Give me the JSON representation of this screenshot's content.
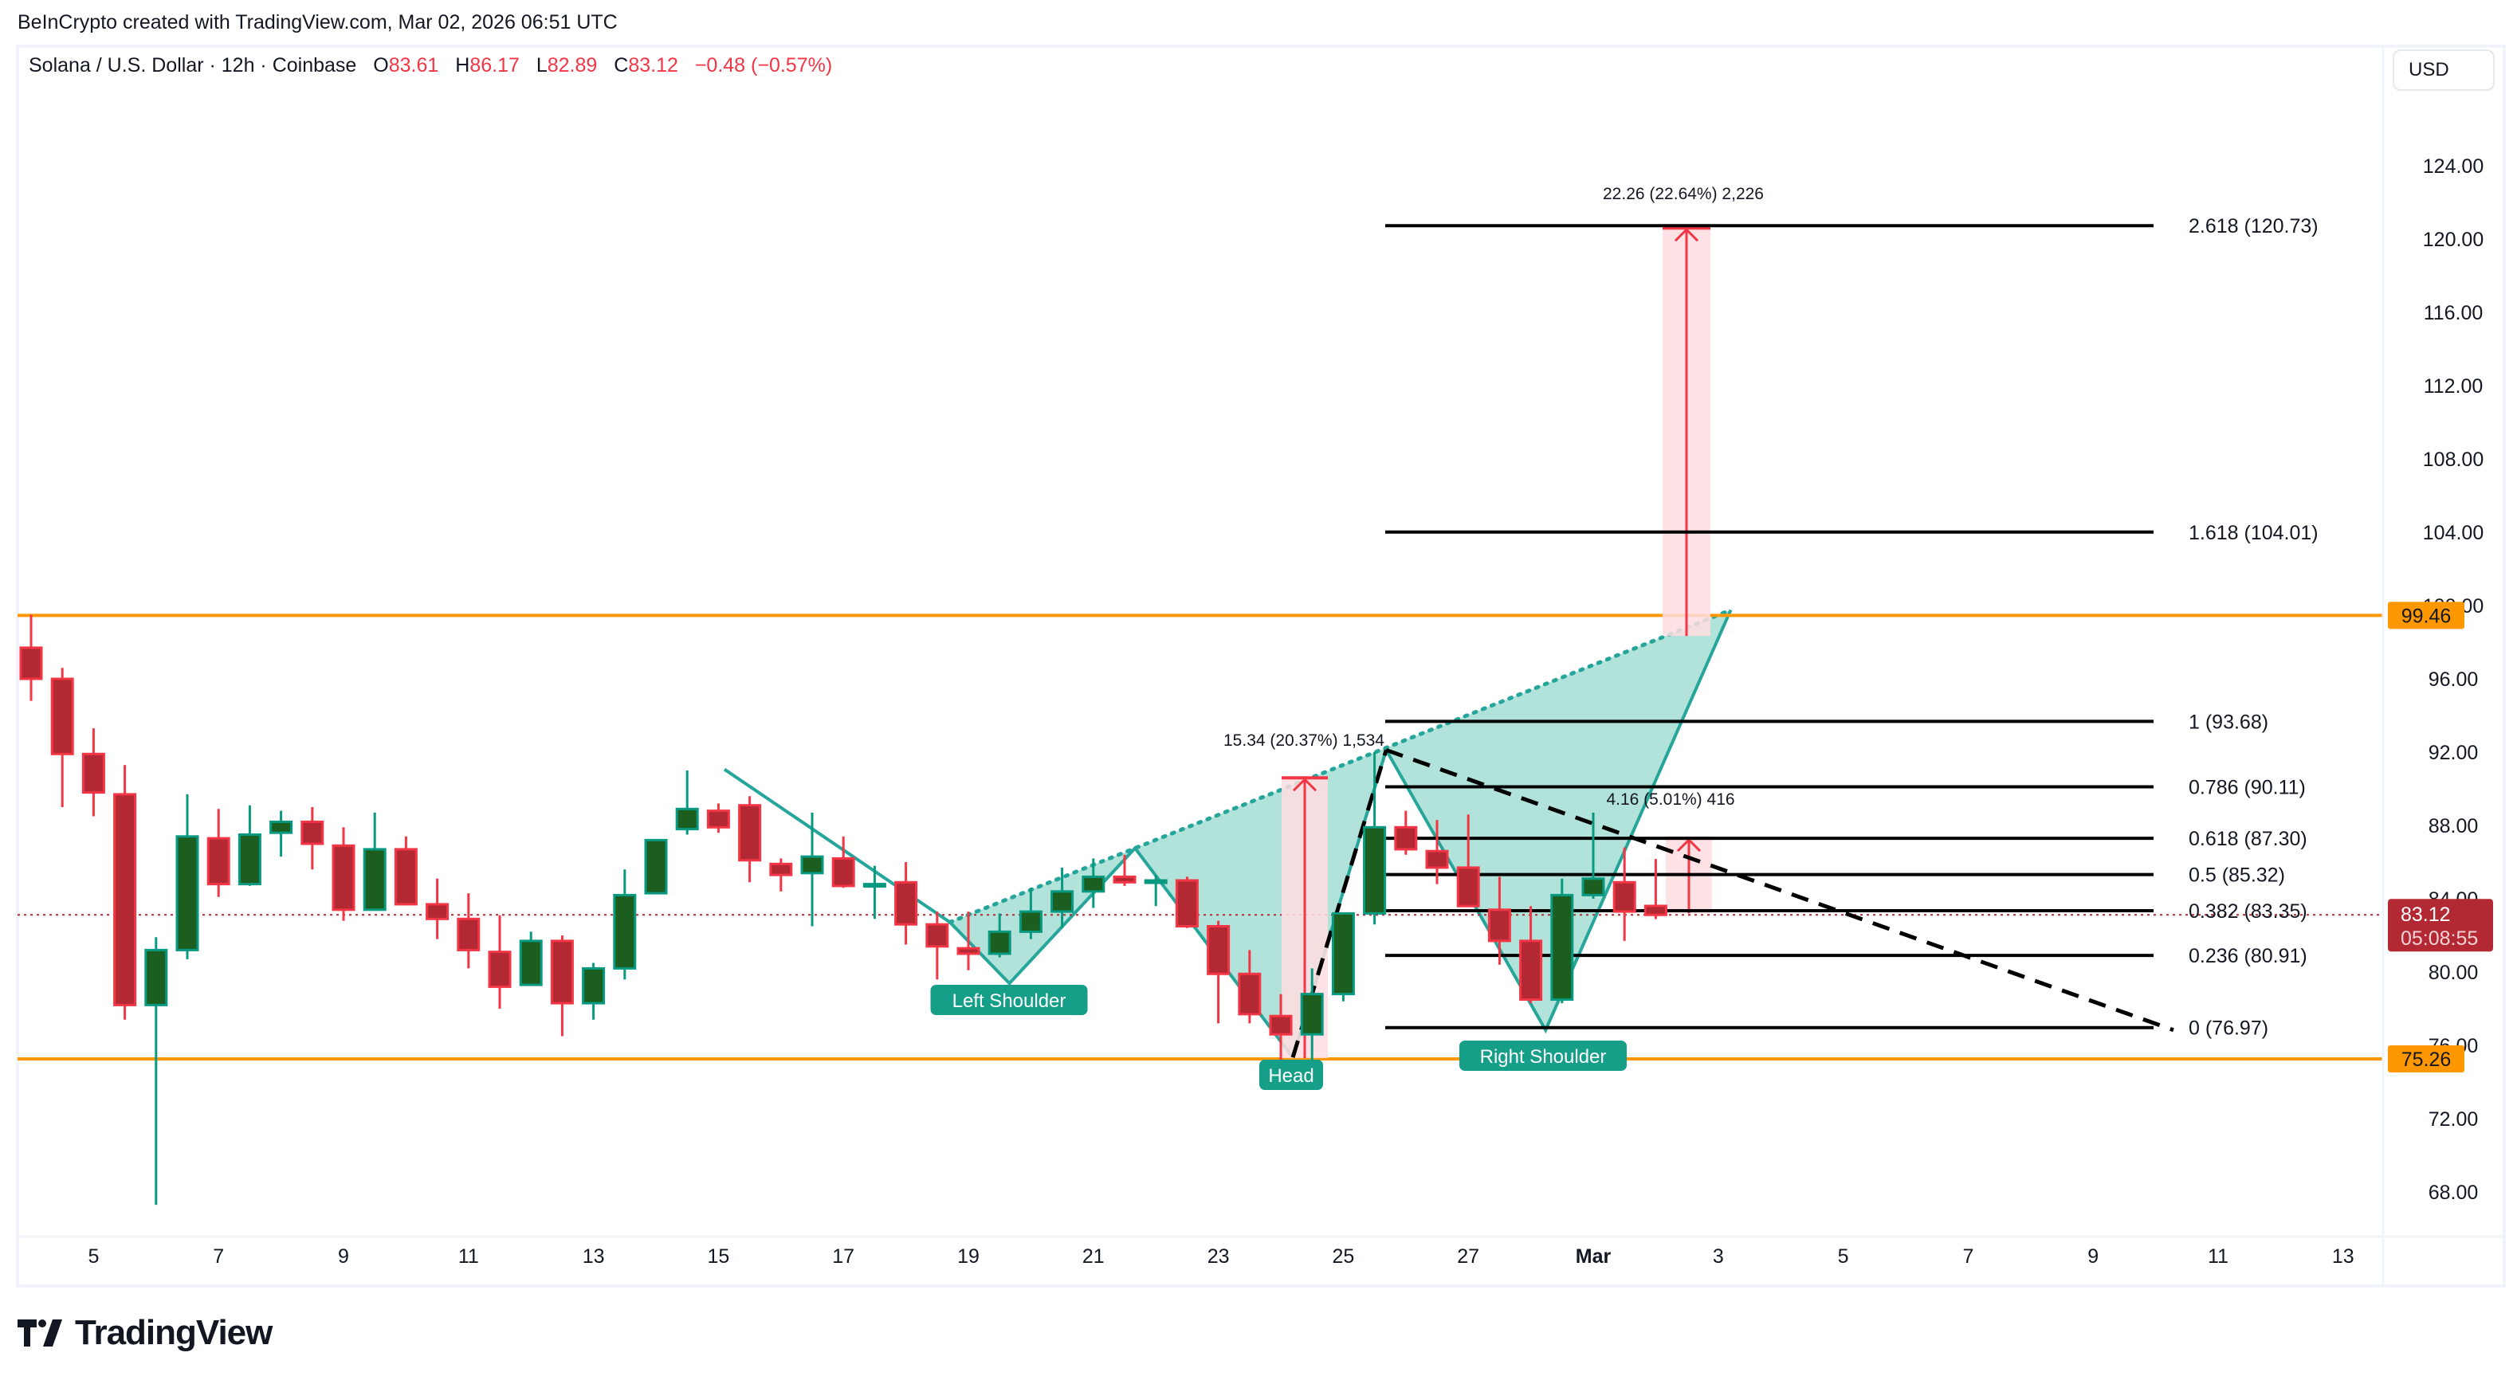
{
  "credit": "BeInCrypto created with TradingView.com, Mar 02, 2026 06:51 UTC",
  "legend": {
    "symbol": "Solana / U.S. Dollar · 12h · Coinbase",
    "o_label": "O",
    "o": "83.61",
    "h_label": "H",
    "h": "86.17",
    "l_label": "L",
    "l": "82.89",
    "c_label": "C",
    "c": "83.12",
    "change": "−0.48 (−0.57%)"
  },
  "currency_button": "USD",
  "footer": {
    "brand": "TradingView"
  },
  "colors": {
    "up_body": "#1b5e20",
    "up_border": "#089981",
    "down_body": "#b22833",
    "down_border": "#f23645",
    "level": "#ff9800",
    "pattern": "#26a69a",
    "pattern_fill": "#b2e3da",
    "measure": "#f23645",
    "measure_fill": "#ffdde1",
    "last_price": "#b22833"
  },
  "chart_data": {
    "type": "candlestick",
    "title": "Solana / U.S. Dollar · 12h · Coinbase",
    "xlabel": "",
    "ylabel": "USD",
    "ylim": [
      64,
      128
    ],
    "y_ticks": [
      "124.00",
      "120.00",
      "116.00",
      "112.00",
      "108.00",
      "104.00",
      "100.00",
      "96.00",
      "92.00",
      "88.00",
      "84.00",
      "80.00",
      "76.00",
      "72.00",
      "68.00"
    ],
    "x_ticks": [
      {
        "label": "5",
        "day": 1
      },
      {
        "label": "7",
        "day": 3
      },
      {
        "label": "9",
        "day": 5
      },
      {
        "label": "11",
        "day": 7
      },
      {
        "label": "13",
        "day": 9
      },
      {
        "label": "15",
        "day": 11
      },
      {
        "label": "17",
        "day": 13
      },
      {
        "label": "19",
        "day": 15
      },
      {
        "label": "21",
        "day": 17
      },
      {
        "label": "23",
        "day": 19
      },
      {
        "label": "25",
        "day": 21
      },
      {
        "label": "27",
        "day": 23
      },
      {
        "label": "Mar",
        "day": 25,
        "bold": true
      },
      {
        "label": "3",
        "day": 27
      },
      {
        "label": "5",
        "day": 29
      },
      {
        "label": "7",
        "day": 31
      },
      {
        "label": "9",
        "day": 33
      },
      {
        "label": "11",
        "day": 35
      },
      {
        "label": "13",
        "day": 37
      }
    ],
    "candles": [
      [
        97.7,
        99.5,
        94.8,
        96.0
      ],
      [
        96.0,
        96.6,
        89.0,
        91.9
      ],
      [
        91.9,
        93.3,
        88.5,
        89.8
      ],
      [
        89.7,
        91.3,
        77.4,
        78.2
      ],
      [
        78.2,
        81.9,
        67.3,
        81.2
      ],
      [
        81.2,
        89.7,
        80.7,
        87.4
      ],
      [
        87.3,
        88.9,
        84.1,
        84.8
      ],
      [
        84.8,
        89.1,
        84.7,
        87.5
      ],
      [
        87.6,
        88.8,
        86.3,
        88.2
      ],
      [
        88.2,
        89.0,
        85.6,
        87.0
      ],
      [
        86.9,
        87.9,
        82.8,
        83.4
      ],
      [
        83.4,
        88.7,
        83.4,
        86.7
      ],
      [
        86.7,
        87.4,
        83.7,
        83.7
      ],
      [
        83.7,
        85.1,
        81.8,
        82.9
      ],
      [
        82.9,
        84.3,
        80.2,
        81.2
      ],
      [
        81.1,
        83.1,
        78.0,
        79.2
      ],
      [
        79.3,
        82.2,
        79.3,
        81.7
      ],
      [
        81.7,
        82.0,
        76.5,
        78.3
      ],
      [
        78.3,
        80.5,
        77.4,
        80.2
      ],
      [
        80.2,
        85.6,
        79.6,
        84.2
      ],
      [
        84.3,
        87.2,
        84.3,
        87.2
      ],
      [
        87.8,
        91.0,
        87.5,
        88.9
      ],
      [
        88.8,
        89.2,
        87.6,
        87.9
      ],
      [
        89.1,
        89.6,
        84.9,
        86.1
      ],
      [
        85.9,
        86.2,
        84.4,
        85.3
      ],
      [
        85.4,
        88.7,
        82.5,
        86.3
      ],
      [
        86.2,
        87.4,
        84.6,
        84.7
      ],
      [
        84.8,
        85.8,
        82.9,
        84.8
      ],
      [
        84.9,
        86.0,
        81.5,
        82.6
      ],
      [
        82.6,
        83.3,
        79.6,
        81.4
      ],
      [
        81.3,
        83.3,
        80.1,
        81.0
      ],
      [
        81.0,
        83.2,
        80.8,
        82.2
      ],
      [
        82.2,
        84.6,
        81.8,
        83.3
      ],
      [
        83.3,
        85.7,
        82.4,
        84.4
      ],
      [
        84.4,
        86.2,
        83.5,
        85.2
      ],
      [
        85.2,
        86.4,
        84.7,
        84.9
      ],
      [
        85.0,
        85.3,
        83.6,
        85.0
      ],
      [
        85.0,
        85.2,
        82.4,
        82.5
      ],
      [
        82.5,
        82.8,
        77.2,
        79.9
      ],
      [
        79.9,
        81.2,
        77.2,
        77.7
      ],
      [
        77.6,
        78.8,
        75.1,
        76.6
      ],
      [
        76.6,
        80.2,
        74.7,
        78.8
      ],
      [
        78.8,
        83.2,
        78.4,
        83.2
      ],
      [
        83.2,
        92.0,
        82.6,
        87.9
      ],
      [
        87.9,
        88.8,
        86.4,
        86.7
      ],
      [
        86.6,
        88.3,
        84.8,
        85.7
      ],
      [
        85.7,
        88.6,
        83.6,
        83.6
      ],
      [
        83.4,
        85.2,
        80.4,
        81.7
      ],
      [
        81.7,
        83.6,
        78.3,
        78.5
      ],
      [
        78.5,
        85.1,
        78.3,
        84.2
      ],
      [
        84.2,
        88.7,
        84.0,
        85.1
      ],
      [
        84.9,
        86.8,
        81.7,
        83.3
      ],
      [
        83.61,
        86.17,
        82.89,
        83.12
      ]
    ],
    "levels": [
      {
        "price": 99.46,
        "label": "99.46",
        "color": "#ff9800"
      },
      {
        "price": 75.26,
        "label": "75.26",
        "color": "#ff9800"
      }
    ],
    "last_price": {
      "value": "83.12",
      "countdown": "05:08:55",
      "price": 83.12
    },
    "fib_extension": {
      "x_start_day": 21.0,
      "x_end_day": 34.0,
      "levels": [
        {
          "ratio": "2.618",
          "price": 120.73,
          "label": "2.618 (120.73)"
        },
        {
          "ratio": "1.618",
          "price": 104.01,
          "label": "1.618 (104.01)"
        },
        {
          "ratio": "1",
          "price": 93.68,
          "label": "1 (93.68)"
        },
        {
          "ratio": "0.786",
          "price": 90.11,
          "label": "0.786 (90.11)"
        },
        {
          "ratio": "0.618",
          "price": 87.3,
          "label": "0.618 (87.30)"
        },
        {
          "ratio": "0.5",
          "price": 85.32,
          "label": "0.5 (85.32)"
        },
        {
          "ratio": "0.382",
          "price": 83.35,
          "label": "0.382 (83.35)"
        },
        {
          "ratio": "0.236",
          "price": 80.91,
          "label": "0.236 (80.91)"
        },
        {
          "ratio": "0",
          "price": 76.97,
          "label": "0 (76.97)"
        }
      ]
    },
    "measurements": [
      {
        "label": "22.26 (22.64%) 2,226",
        "x_day": 26.6,
        "from": 98.34,
        "to": 120.6
      },
      {
        "label": "15.34 (20.37%) 1,534",
        "x_day": 19.3,
        "from": 75.3,
        "to": 90.6
      },
      {
        "label": "4.16 (5.01%) 416",
        "x_day": 26.6,
        "from": 83.2,
        "to": 87.3
      }
    ],
    "pattern": {
      "name": "Inverse Head and Shoulders",
      "labels": [
        {
          "text": "Left Shoulder",
          "x_day": 15.3,
          "price": 79.4
        },
        {
          "text": "Head",
          "x_day": 19.9,
          "price": 75.3
        },
        {
          "text": "Right Shoulder",
          "x_day": 24.4,
          "price": 77.0
        }
      ]
    }
  }
}
